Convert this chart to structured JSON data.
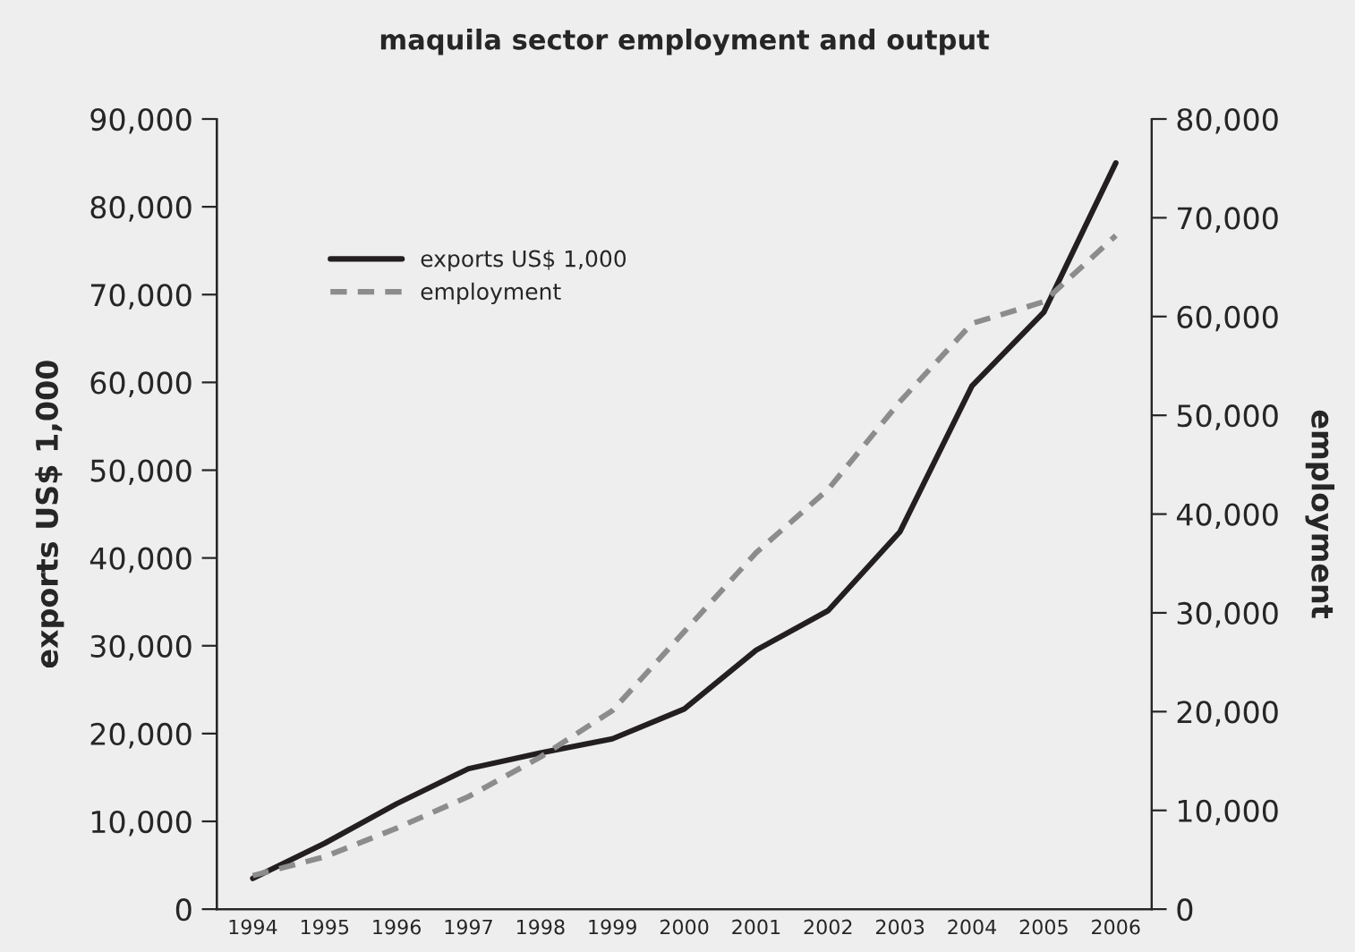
{
  "chart_data": {
    "type": "line",
    "title": "maquila sector employment and output",
    "ylabel": "exports US$ 1,000",
    "y2label": "employment",
    "categories": [
      "1994",
      "1995",
      "1996",
      "1997",
      "1998",
      "1999",
      "2000",
      "2001",
      "2002",
      "2003",
      "2004",
      "2005",
      "2006"
    ],
    "series": [
      {
        "name": "exports US$ 1,000",
        "color": "#231f20",
        "line_style": "solid",
        "values": [
          3500,
          7500,
          12000,
          16000,
          17800,
          19400,
          22800,
          29500,
          34000,
          43000,
          59600,
          68000,
          85000
        ]
      },
      {
        "name": "employment",
        "color": "#8c8c8c",
        "line_style": "dashed",
        "axis": "y2",
        "values": [
          3400,
          5300,
          8200,
          11400,
          15400,
          20100,
          28100,
          36100,
          42500,
          51400,
          59300,
          61500,
          68200
        ]
      }
    ],
    "ylim": [
      0,
      90000
    ],
    "yticks": [
      {
        "value": 0,
        "label": "0"
      },
      {
        "value": 10000,
        "label": "10,000"
      },
      {
        "value": 20000,
        "label": "20,000"
      },
      {
        "value": 30000,
        "label": "30,000"
      },
      {
        "value": 40000,
        "label": "40,000"
      },
      {
        "value": 50000,
        "label": "50,000"
      },
      {
        "value": 60000,
        "label": "60,000"
      },
      {
        "value": 70000,
        "label": "70,000"
      },
      {
        "value": 80000,
        "label": "80,000"
      },
      {
        "value": 90000,
        "label": "90,000"
      }
    ],
    "y2lim": [
      0,
      80000
    ],
    "y2ticks": [
      {
        "value": 0,
        "label": "0"
      },
      {
        "value": 10000,
        "label": "10,000"
      },
      {
        "value": 20000,
        "label": "20,000"
      },
      {
        "value": 30000,
        "label": "30,000"
      },
      {
        "value": 40000,
        "label": "40,000"
      },
      {
        "value": 50000,
        "label": "50,000"
      },
      {
        "value": 60000,
        "label": "60,000"
      },
      {
        "value": 70000,
        "label": "70,000"
      },
      {
        "value": 80000,
        "label": "80,000"
      }
    ],
    "grid": false,
    "legend": "top left",
    "marker": "none"
  }
}
